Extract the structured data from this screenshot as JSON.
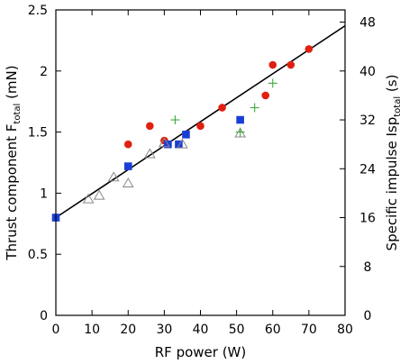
{
  "chart_data": {
    "type": "scatter",
    "title": "",
    "xlabel": "RF power (W)",
    "ylabel": {
      "main": "Thrust component F",
      "sub": "total",
      "unit": " (mN)"
    },
    "y2label": {
      "main": "Specific impulse Isp",
      "sub": "total",
      "unit": " (s)"
    },
    "xlim": [
      0,
      80
    ],
    "ylim": [
      0,
      2.5
    ],
    "y2lim": [
      0,
      50
    ],
    "xticks": [
      "0",
      "10",
      "20",
      "30",
      "40",
      "50",
      "60",
      "70",
      "80"
    ],
    "yticks": [
      "0",
      "0.5",
      "1",
      "1.5",
      "2",
      "2.5"
    ],
    "y2ticks": [
      "0",
      "8",
      "16",
      "24",
      "32",
      "40",
      "48"
    ],
    "grid": false,
    "colors": {
      "circle": "#e02010",
      "square": "#1a3fd6",
      "triangle": "#888888",
      "plus": "#3aaa3a",
      "line": "#000000"
    },
    "fit_line": {
      "x": [
        0,
        80
      ],
      "y": [
        0.8,
        2.37
      ]
    },
    "series": [
      {
        "marker": "circle",
        "x": [
          20,
          26,
          30,
          40,
          46,
          58,
          60,
          65,
          70
        ],
        "y": [
          1.4,
          1.55,
          1.43,
          1.55,
          1.7,
          1.8,
          2.05,
          2.05,
          2.18
        ]
      },
      {
        "marker": "square",
        "x": [
          0,
          20,
          31,
          34,
          36,
          51
        ],
        "y": [
          0.8,
          1.22,
          1.4,
          1.4,
          1.48,
          1.6
        ]
      },
      {
        "marker": "triangle",
        "x": [
          9,
          12,
          16,
          20,
          26,
          30,
          35,
          51
        ],
        "y": [
          0.95,
          0.98,
          1.13,
          1.08,
          1.32,
          1.41,
          1.4,
          1.49
        ]
      },
      {
        "marker": "plus",
        "x": [
          33,
          51,
          55,
          60
        ],
        "y": [
          1.6,
          1.5,
          1.7,
          1.9
        ]
      }
    ]
  }
}
